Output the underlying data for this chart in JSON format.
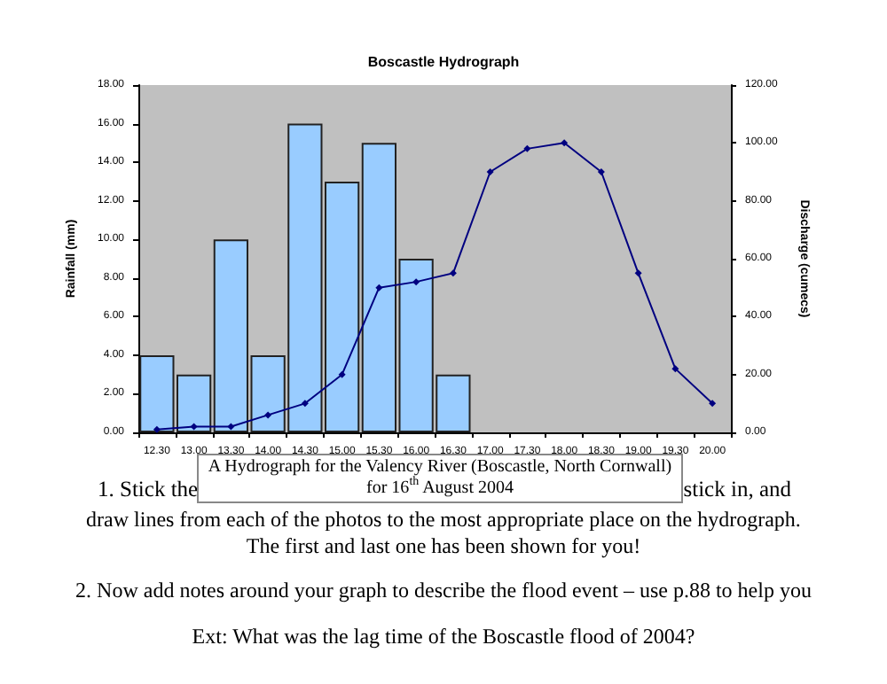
{
  "chart_data": {
    "type": "bar",
    "title": "Boscastle Hydrograph",
    "ylabel": "Rainfall (mm)",
    "y2label": "Discharge (cumecs)",
    "categories": [
      "12.30",
      "13.00",
      "13.30",
      "14.00",
      "14.30",
      "15.00",
      "15.30",
      "16.00",
      "16.30",
      "17.00",
      "17.30",
      "18.00",
      "18.30",
      "19.00",
      "19.30",
      "20.00"
    ],
    "series": [
      {
        "color": "#99ccff",
        "values": [
          4,
          3,
          10,
          4,
          16,
          13,
          15,
          9,
          3,
          null,
          null,
          null,
          null,
          null,
          null,
          null
        ]
      },
      {
        "type": "line",
        "axis": "y2",
        "color": "#000080",
        "marker": "diamond",
        "values": [
          1,
          2,
          2,
          6,
          10,
          20,
          50,
          52,
          55,
          90,
          98,
          100,
          90,
          55,
          22,
          10
        ]
      }
    ],
    "ylim": [
      0,
      18
    ],
    "yticks": [
      {
        "value": 0,
        "label": "0.00"
      },
      {
        "value": 2,
        "label": "2.00"
      },
      {
        "value": 4,
        "label": "4.00"
      },
      {
        "value": 6,
        "label": "6.00"
      },
      {
        "value": 8,
        "label": "8.00"
      },
      {
        "value": 10,
        "label": "10.00"
      },
      {
        "value": 12,
        "label": "12.00"
      },
      {
        "value": 14,
        "label": "14.00"
      },
      {
        "value": 16,
        "label": "16.00"
      },
      {
        "value": 18,
        "label": "18.00"
      }
    ],
    "y2lim": [
      0,
      120
    ],
    "y2ticks": [
      {
        "value": 0,
        "label": "0.00"
      },
      {
        "value": 20,
        "label": "20.00"
      },
      {
        "value": 40,
        "label": "40.00"
      },
      {
        "value": 60,
        "label": "60.00"
      },
      {
        "value": 80,
        "label": "80.00"
      },
      {
        "value": 100,
        "label": "100.00"
      },
      {
        "value": 120,
        "label": "120.00"
      }
    ],
    "grid": false,
    "annotations": [
      "A Hydrograph for the Valency River (Boscastle, North Cornwall) for 16$^{th}$ August 2004",
      "1. Stick the",
      "stick in, and",
      "draw lines from each of the photos to the most appropriate place on the hydrograph.",
      "The first and last one has been shown for you!",
      "2. Now add notes around your graph to describe the flood event – use p.88 to help you",
      "Ext: What was the lag time of the Boscastle flood of 2004?"
    ]
  }
}
